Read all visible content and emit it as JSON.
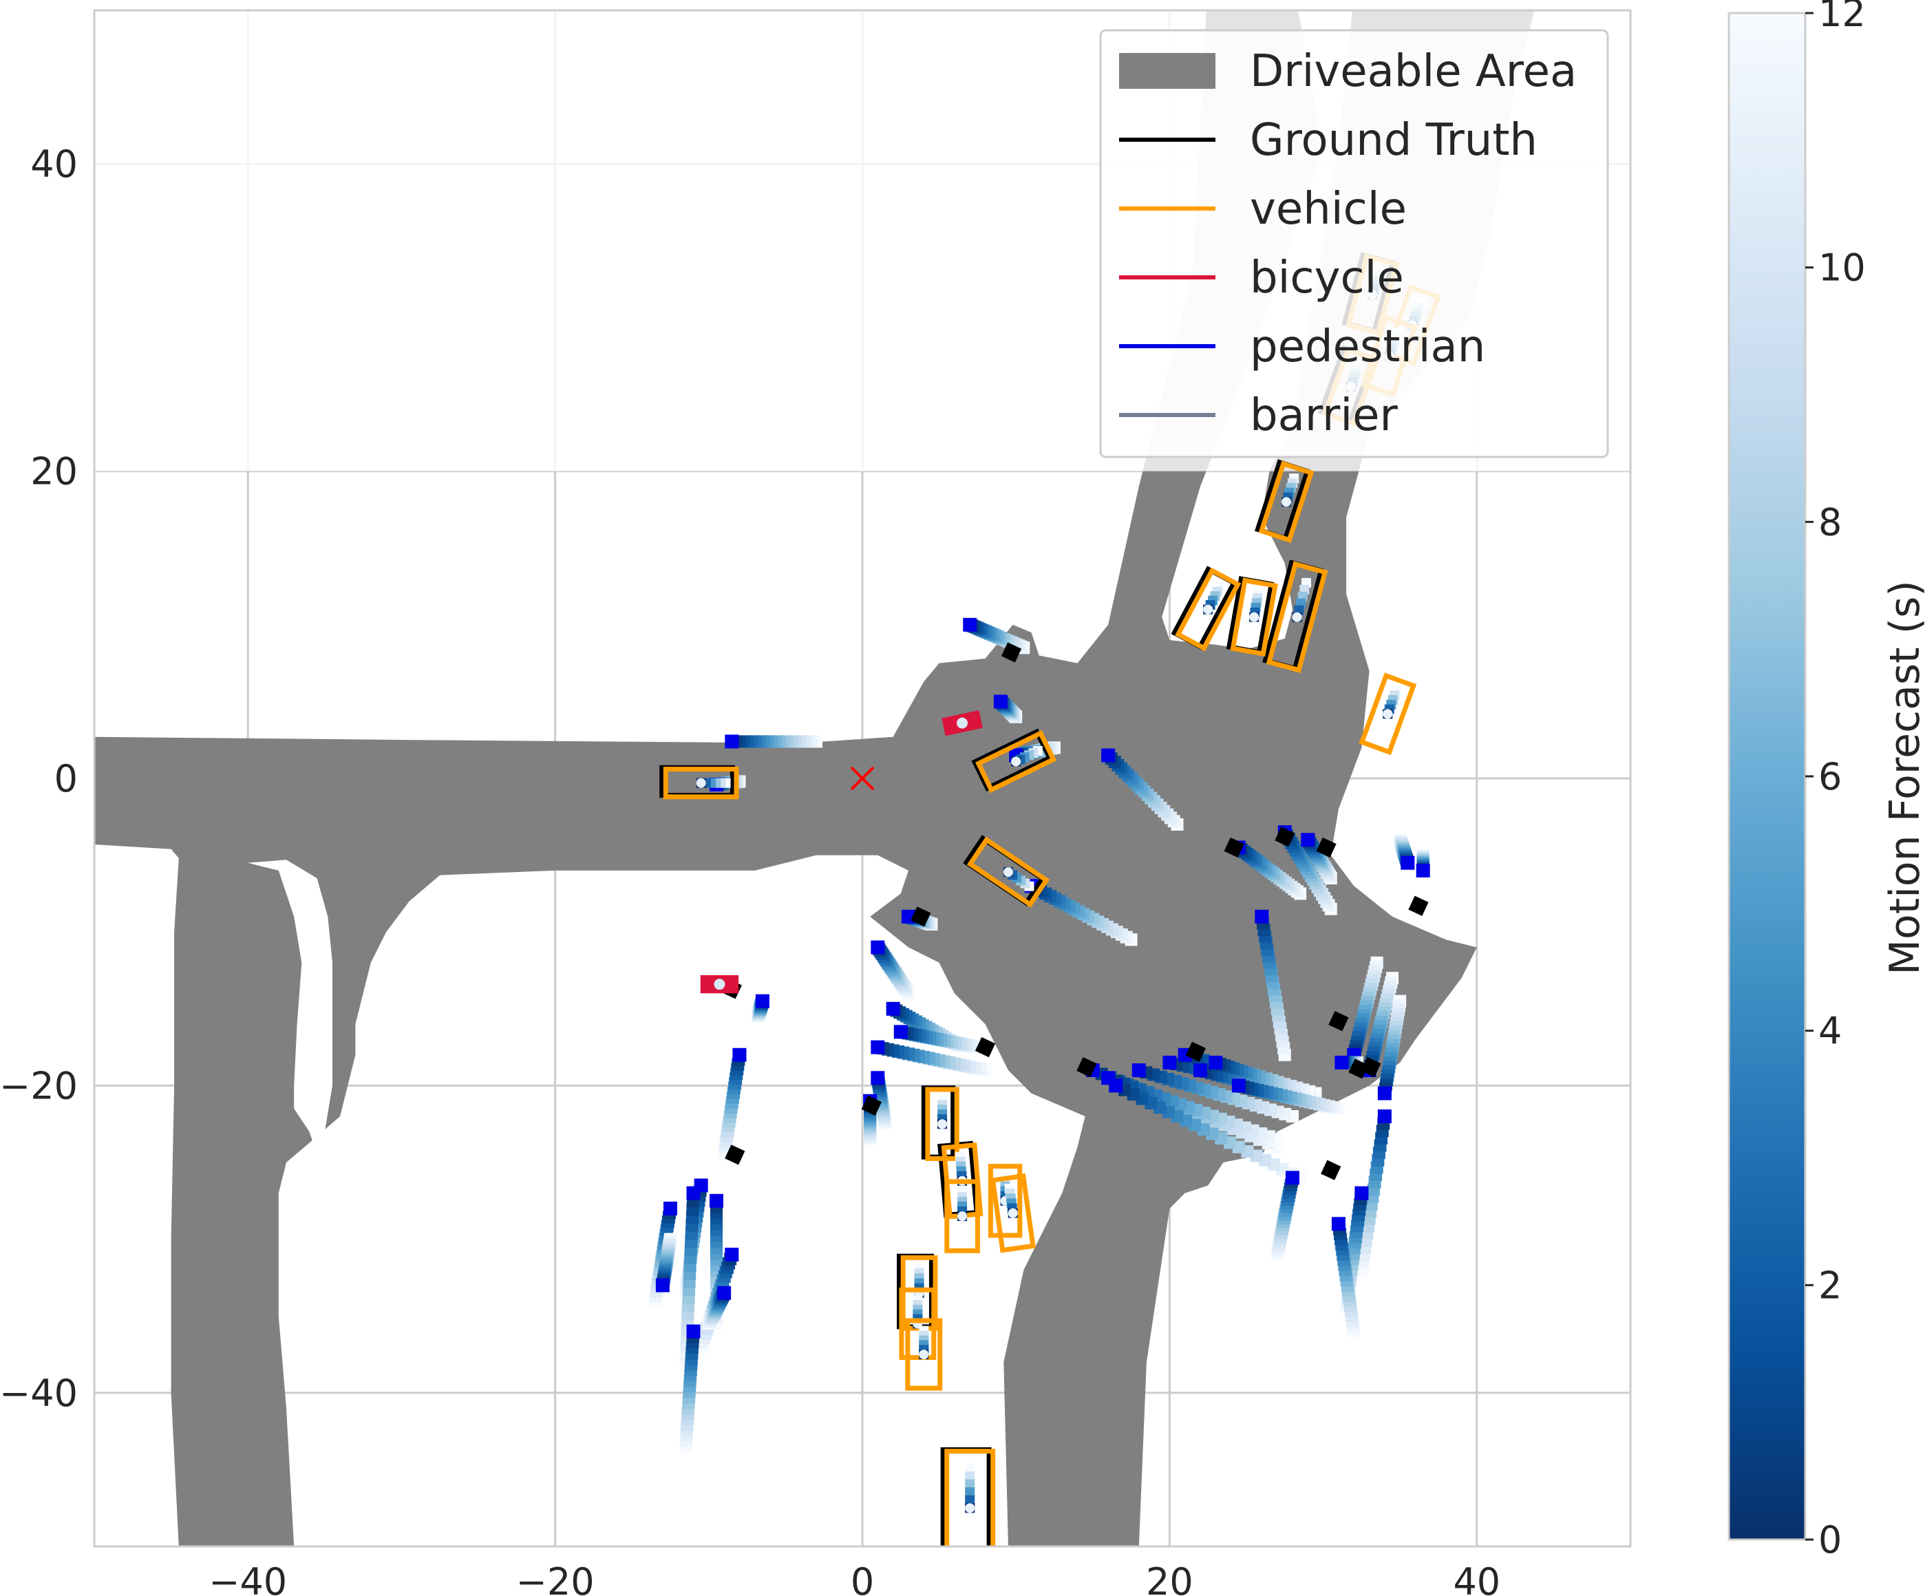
{
  "chart_data": {
    "type": "scatter",
    "title": "",
    "xlabel": "",
    "ylabel": "",
    "xlim": [
      -50,
      50
    ],
    "ylim": [
      -50,
      50
    ],
    "x_ticks": [
      -40,
      -20,
      0,
      20,
      40
    ],
    "y_ticks": [
      -40,
      -20,
      0,
      20,
      40
    ],
    "x_tick_labels": [
      "−40",
      "−20",
      "0",
      "20",
      "40"
    ],
    "y_tick_labels": [
      "−40",
      "−20",
      "0",
      "20",
      "40"
    ],
    "grid": true,
    "legend_position": "top-right",
    "legend": [
      {
        "label": "Driveable Area",
        "kind": "patch",
        "color": "#808080"
      },
      {
        "label": "Ground Truth",
        "kind": "line",
        "color": "#000000"
      },
      {
        "label": "vehicle",
        "kind": "line",
        "color": "#ff9d00"
      },
      {
        "label": "bicycle",
        "kind": "line",
        "color": "#dc143c"
      },
      {
        "label": "pedestrian",
        "kind": "line",
        "color": "#0000e6"
      },
      {
        "label": "barrier",
        "kind": "line",
        "color": "#708090"
      }
    ],
    "colorbar": {
      "label": "Motion Forecast (s)",
      "range": [
        0,
        12
      ],
      "ticks": [
        0,
        2,
        4,
        6,
        8,
        10,
        12
      ],
      "colormap": "Blues_r",
      "colors": [
        "#08306b",
        "#08519c",
        "#2171b5",
        "#4292c6",
        "#6baed6",
        "#9ecae1",
        "#c6dbef",
        "#deebf7",
        "#f7fbff"
      ]
    },
    "ego_marker": {
      "x": 0,
      "y": 0,
      "symbol": "x",
      "color": "#ff0000"
    },
    "driveable_area": [
      [
        [
          -50,
          2.7
        ],
        [
          -29,
          2.5
        ],
        [
          -4,
          2.3
        ],
        [
          2,
          2.7
        ],
        [
          4,
          6.3
        ],
        [
          5,
          7.5
        ],
        [
          8,
          7.8
        ],
        [
          9.8,
          10
        ],
        [
          11,
          9.5
        ],
        [
          11.5,
          8
        ],
        [
          14,
          7.5
        ],
        [
          16,
          10
        ],
        [
          18,
          19
        ],
        [
          21.5,
          33
        ],
        [
          22.5,
          52
        ],
        [
          28,
          52
        ],
        [
          30,
          41
        ],
        [
          25.5,
          28
        ],
        [
          22,
          19
        ],
        [
          19.5,
          10.5
        ],
        [
          20,
          9
        ],
        [
          23,
          8.7
        ],
        [
          25,
          8.4
        ],
        [
          27.5,
          9.1
        ],
        [
          28,
          11
        ],
        [
          27.5,
          14
        ],
        [
          26,
          17
        ],
        [
          26.5,
          20
        ],
        [
          28,
          23
        ],
        [
          29,
          29
        ],
        [
          30,
          35
        ],
        [
          31,
          41
        ],
        [
          32,
          51
        ],
        [
          44,
          51
        ],
        [
          42.5,
          45
        ],
        [
          41,
          36
        ],
        [
          39.5,
          30
        ],
        [
          36,
          26
        ],
        [
          33,
          22.5
        ],
        [
          31.5,
          17
        ],
        [
          31.5,
          12
        ],
        [
          33,
          7
        ],
        [
          32.5,
          2
        ],
        [
          31,
          -2
        ],
        [
          30.5,
          -5
        ],
        [
          32,
          -7
        ],
        [
          34.5,
          -9
        ],
        [
          38,
          -10.5
        ],
        [
          40,
          -11
        ],
        [
          39,
          -13
        ],
        [
          36,
          -17
        ],
        [
          35,
          -18.5
        ],
        [
          33,
          -20
        ],
        [
          31,
          -21
        ],
        [
          29,
          -22
        ],
        [
          27,
          -23
        ],
        [
          26,
          -24.5
        ],
        [
          23.5,
          -25
        ],
        [
          22.5,
          -26.5
        ],
        [
          21,
          -27
        ],
        [
          20,
          -28
        ],
        [
          18.5,
          -38
        ],
        [
          18,
          -50
        ],
        [
          9.5,
          -50
        ],
        [
          9.2,
          -38
        ],
        [
          10.5,
          -32
        ],
        [
          12,
          -29
        ],
        [
          13,
          -27
        ],
        [
          14,
          -24
        ],
        [
          14.5,
          -22
        ],
        [
          11,
          -20.5
        ],
        [
          9.5,
          -19
        ],
        [
          8,
          -16
        ],
        [
          6,
          -14
        ],
        [
          5,
          -12
        ],
        [
          3,
          -11
        ],
        [
          0.5,
          -9
        ],
        [
          2.5,
          -7.5
        ],
        [
          3,
          -6
        ],
        [
          1,
          -5
        ],
        [
          -3,
          -5
        ],
        [
          -5,
          -5.5
        ],
        [
          -7,
          -6
        ],
        [
          -10,
          -6
        ],
        [
          -20,
          -6
        ],
        [
          -27.5,
          -6.3
        ],
        [
          -29.5,
          -8
        ],
        [
          -31,
          -10
        ],
        [
          -32,
          -12
        ],
        [
          -32.5,
          -14
        ],
        [
          -33,
          -16
        ],
        [
          -33,
          -18
        ],
        [
          -34,
          -22
        ],
        [
          -35.5,
          -23.3
        ],
        [
          -37.5,
          -25
        ],
        [
          -38,
          -27
        ],
        [
          -38,
          -30
        ],
        [
          -38,
          -35
        ],
        [
          -37.5,
          -41
        ],
        [
          -37,
          -50
        ],
        [
          -44.5,
          -50
        ],
        [
          -45,
          -40
        ],
        [
          -45,
          -30
        ],
        [
          -44.8,
          -20
        ],
        [
          -44.8,
          -10
        ],
        [
          -44.5,
          -5.2
        ],
        [
          -45,
          -4.6
        ],
        [
          -50,
          -4.3
        ]
      ],
      [
        [
          -40,
          -5.5
        ],
        [
          -38,
          -6
        ],
        [
          -37,
          -9
        ],
        [
          -36.5,
          -12
        ],
        [
          -36.8,
          -16
        ],
        [
          -37,
          -20
        ],
        [
          -37,
          -21.5
        ],
        [
          -36,
          -23
        ],
        [
          -35.5,
          -24.5
        ],
        [
          -35,
          -23
        ],
        [
          -34.5,
          -20
        ],
        [
          -34.5,
          -16
        ],
        [
          -34.5,
          -12
        ],
        [
          -34.8,
          -9
        ],
        [
          -35.5,
          -6.5
        ],
        [
          -37.5,
          -5.3
        ]
      ]
    ],
    "map_fade_y": 20,
    "vehicles": [
      {
        "cx": -10.5,
        "cy": -0.3,
        "w": 4.6,
        "h": 1.8,
        "angle": 0,
        "gt": true
      },
      {
        "cx": 10,
        "cy": 1.1,
        "w": 4.5,
        "h": 1.9,
        "angle": 26,
        "gt": true
      },
      {
        "cx": 9.5,
        "cy": -6.1,
        "w": 4.7,
        "h": 1.9,
        "angle": -34,
        "gt": true
      },
      {
        "cx": 27.6,
        "cy": 18,
        "w": 1.9,
        "h": 4.6,
        "angle": -18,
        "gt": true
      },
      {
        "cx": 22.5,
        "cy": 11,
        "w": 1.9,
        "h": 4.7,
        "angle": -28,
        "gt": true
      },
      {
        "cx": 25.5,
        "cy": 10.5,
        "w": 2.0,
        "h": 4.5,
        "angle": -10,
        "gt": true
      },
      {
        "cx": 28.3,
        "cy": 10.5,
        "w": 2.0,
        "h": 6.6,
        "angle": -15,
        "gt": true
      },
      {
        "cx": 34.2,
        "cy": 4.2,
        "w": 1.9,
        "h": 4.6,
        "angle": -20,
        "gt": false
      },
      {
        "cx": 5.2,
        "cy": -22.5,
        "w": 1.9,
        "h": 4.5,
        "angle": 0,
        "gt": true
      },
      {
        "cx": 6.5,
        "cy": -26.2,
        "w": 2.0,
        "h": 4.5,
        "angle": 5,
        "gt": true
      },
      {
        "cx": 6.5,
        "cy": -28.5,
        "w": 2.0,
        "h": 4.5,
        "angle": 0,
        "gt": false
      },
      {
        "cx": 9.3,
        "cy": -27.5,
        "w": 1.9,
        "h": 4.5,
        "angle": 0,
        "gt": false
      },
      {
        "cx": 9.8,
        "cy": -28.3,
        "w": 2.0,
        "h": 4.6,
        "angle": 8,
        "gt": false
      },
      {
        "cx": 3.7,
        "cy": -33.5,
        "w": 2.1,
        "h": 4.6,
        "angle": 0,
        "gt": true
      },
      {
        "cx": 3.6,
        "cy": -35.5,
        "w": 2.1,
        "h": 4.4,
        "angle": 0,
        "gt": false
      },
      {
        "cx": 4.0,
        "cy": -37.5,
        "w": 2.1,
        "h": 4.4,
        "angle": 0,
        "gt": false
      },
      {
        "cx": 7,
        "cy": -47.5,
        "w": 3.0,
        "h": 7.4,
        "angle": 0,
        "gt": true
      },
      {
        "cx": 33.2,
        "cy": 31.5,
        "w": 2.0,
        "h": 4.6,
        "angle": -15,
        "gt": true
      },
      {
        "cx": 35.8,
        "cy": 29.5,
        "w": 1.9,
        "h": 4.6,
        "angle": -20,
        "gt": false
      },
      {
        "cx": 34.3,
        "cy": 27.5,
        "w": 2.0,
        "h": 4.6,
        "angle": -18,
        "gt": false
      },
      {
        "cx": 31.8,
        "cy": 25.5,
        "w": 2.0,
        "h": 4.4,
        "angle": -20,
        "gt": true
      }
    ],
    "bicycles": [
      {
        "x": 6.5,
        "y": 3.6,
        "angle": 12
      },
      {
        "x": -9.3,
        "y": -13.4,
        "angle": 0
      }
    ],
    "pedestrians": [
      {
        "x": -8.5,
        "y": 2.4,
        "dx": 5.5,
        "dy": 0
      },
      {
        "x": -9.5,
        "y": -0.4,
        "dx": 1.5,
        "dy": 0.2
      },
      {
        "x": 7,
        "y": 10,
        "dx": 3.5,
        "dy": -1.5
      },
      {
        "x": 9,
        "y": 5,
        "dx": 1,
        "dy": -1
      },
      {
        "x": 10,
        "y": 1.5,
        "dx": 2.5,
        "dy": 0.5
      },
      {
        "x": 16,
        "y": 1.5,
        "dx": 4.5,
        "dy": -4.5
      },
      {
        "x": 11,
        "y": -7,
        "dx": 6.5,
        "dy": -3.5
      },
      {
        "x": 3,
        "y": -9,
        "dx": 1.5,
        "dy": -0.5
      },
      {
        "x": 1,
        "y": -11,
        "dx": 2,
        "dy": -3
      },
      {
        "x": -6.5,
        "y": -14.5,
        "dx": -0.3,
        "dy": -1
      },
      {
        "x": -8,
        "y": -18,
        "dx": -1,
        "dy": -6.5
      },
      {
        "x": 2,
        "y": -15,
        "dx": 4.5,
        "dy": -2.5
      },
      {
        "x": 2.5,
        "y": -16.5,
        "dx": 5,
        "dy": -1
      },
      {
        "x": 1,
        "y": -17.5,
        "dx": 7,
        "dy": -1.5
      },
      {
        "x": 1,
        "y": -19.5,
        "dx": 0.5,
        "dy": -3
      },
      {
        "x": 0.5,
        "y": -21,
        "dx": 0,
        "dy": -2.5
      },
      {
        "x": 15,
        "y": -19,
        "dx": 12,
        "dy": -5
      },
      {
        "x": 16,
        "y": -19.5,
        "dx": 11,
        "dy": -4
      },
      {
        "x": 18,
        "y": -19,
        "dx": 10,
        "dy": -3
      },
      {
        "x": 20,
        "y": -18.5,
        "dx": 9,
        "dy": -2
      },
      {
        "x": 21,
        "y": -18,
        "dx": 8.5,
        "dy": -2.5
      },
      {
        "x": 22,
        "y": -19,
        "dx": 7.5,
        "dy": -2
      },
      {
        "x": 23,
        "y": -18.5,
        "dx": 6,
        "dy": -2
      },
      {
        "x": 24.5,
        "y": -20,
        "dx": 6.5,
        "dy": -1.5
      },
      {
        "x": 16.5,
        "y": -20,
        "dx": 12,
        "dy": -6
      },
      {
        "x": 26,
        "y": -9,
        "dx": 1.5,
        "dy": -9
      },
      {
        "x": 24.5,
        "y": -4.5,
        "dx": 4,
        "dy": -3
      },
      {
        "x": 27.5,
        "y": -3.5,
        "dx": 3,
        "dy": -5
      },
      {
        "x": 29,
        "y": -4,
        "dx": 1.5,
        "dy": -2.5
      },
      {
        "x": 35.5,
        "y": -5.5,
        "dx": -0.5,
        "dy": 1.5
      },
      {
        "x": 36.5,
        "y": -6,
        "dx": 0,
        "dy": 1
      },
      {
        "x": 32,
        "y": -18,
        "dx": 1.5,
        "dy": 6
      },
      {
        "x": 33,
        "y": -19,
        "dx": 1.5,
        "dy": 6
      },
      {
        "x": 34,
        "y": -20.5,
        "dx": 1,
        "dy": 6
      },
      {
        "x": 31.2,
        "y": -18.5,
        "dx": 1,
        "dy": 0
      },
      {
        "x": 34,
        "y": -22,
        "dx": -1.5,
        "dy": -10
      },
      {
        "x": 32.5,
        "y": -27,
        "dx": -1,
        "dy": -7.5
      },
      {
        "x": 31,
        "y": -29,
        "dx": 1,
        "dy": -7
      },
      {
        "x": 28,
        "y": -26,
        "dx": -1,
        "dy": -5
      },
      {
        "x": -12.5,
        "y": -28,
        "dx": -1,
        "dy": -6
      },
      {
        "x": -10.5,
        "y": -26.5,
        "dx": -1,
        "dy": -7
      },
      {
        "x": -11,
        "y": -27,
        "dx": -0.5,
        "dy": -11
      },
      {
        "x": -9.5,
        "y": -27.5,
        "dx": 0,
        "dy": -8
      },
      {
        "x": -8.5,
        "y": -31,
        "dx": -2,
        "dy": -6
      },
      {
        "x": -13,
        "y": -33,
        "dx": 0.5,
        "dy": 3
      },
      {
        "x": -9,
        "y": -33.5,
        "dx": -1,
        "dy": -2
      },
      {
        "x": -11,
        "y": -36,
        "dx": -0.5,
        "dy": -7.5
      }
    ],
    "ground_truth_pedestrians": [
      {
        "x": 9.7,
        "y": 8.2
      },
      {
        "x": 24.2,
        "y": -4.5
      },
      {
        "x": 27.5,
        "y": -3.8
      },
      {
        "x": 30.2,
        "y": -4.5
      },
      {
        "x": 36.2,
        "y": -8.3
      },
      {
        "x": 3.8,
        "y": -9
      },
      {
        "x": -8.5,
        "y": -13.7
      },
      {
        "x": 8,
        "y": -17.5
      },
      {
        "x": 14.6,
        "y": -18.8
      },
      {
        "x": 0.6,
        "y": -21.3
      },
      {
        "x": 21.7,
        "y": -17.8
      },
      {
        "x": 31,
        "y": -15.8
      },
      {
        "x": 32.3,
        "y": -18.9
      },
      {
        "x": -8.3,
        "y": -24.5
      },
      {
        "x": 30.5,
        "y": -25.5
      },
      {
        "x": 33.1,
        "y": -18.8
      }
    ]
  }
}
